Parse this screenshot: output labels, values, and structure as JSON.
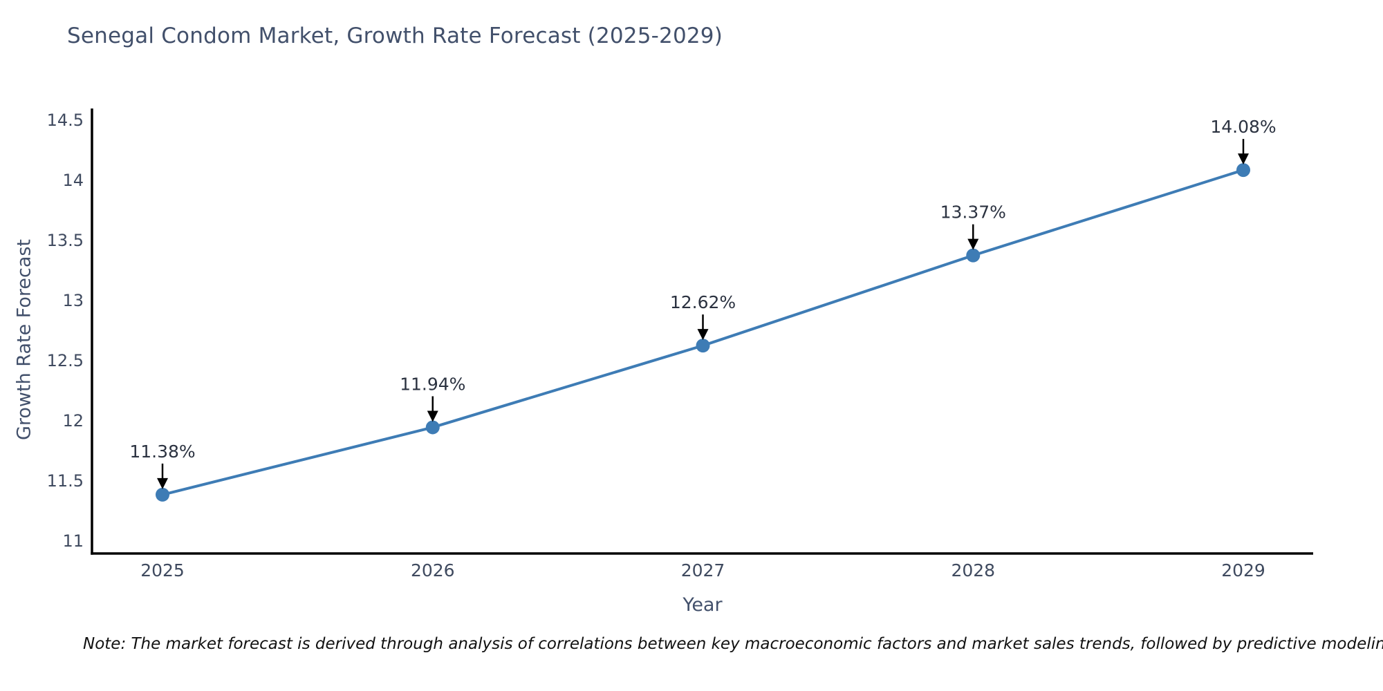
{
  "header": {
    "title": "Senegal Condom Market, Growth Rate Forecast (2025-2029)"
  },
  "footnote": {
    "text": "Note: The market forecast is derived through analysis of correlations between key macroeconomic factors and market sales trends, followed by predictive modeling to project future sal"
  },
  "chart_data": {
    "type": "line",
    "title": "Senegal Condom Market, Growth Rate Forecast (2025-2029)",
    "xlabel": "Year",
    "ylabel": "Growth Rate Forecast",
    "categories": [
      "2025",
      "2026",
      "2027",
      "2028",
      "2029"
    ],
    "values": [
      11.38,
      11.94,
      12.62,
      13.37,
      14.08
    ],
    "point_labels": [
      "11.38%",
      "11.94%",
      "12.62%",
      "13.37%",
      "14.08%"
    ],
    "yticks": [
      11,
      11.5,
      12,
      12.5,
      13,
      13.5,
      14,
      14.5
    ],
    "ylim": [
      10.89,
      14.6
    ],
    "grid": false,
    "legend": null,
    "annotations": "arrow-down-to-point",
    "colors": {
      "line": "#3E7CB5",
      "marker": "#3E7CB5",
      "axis": "#000000",
      "arrow": "#000000",
      "title_text": "#42506B",
      "axis_label_text": "#42506B",
      "tick_text": "#3F4A5F",
      "annotation_text": "#2B3240",
      "note_text": "#111111",
      "background": "#FFFFFF"
    }
  }
}
